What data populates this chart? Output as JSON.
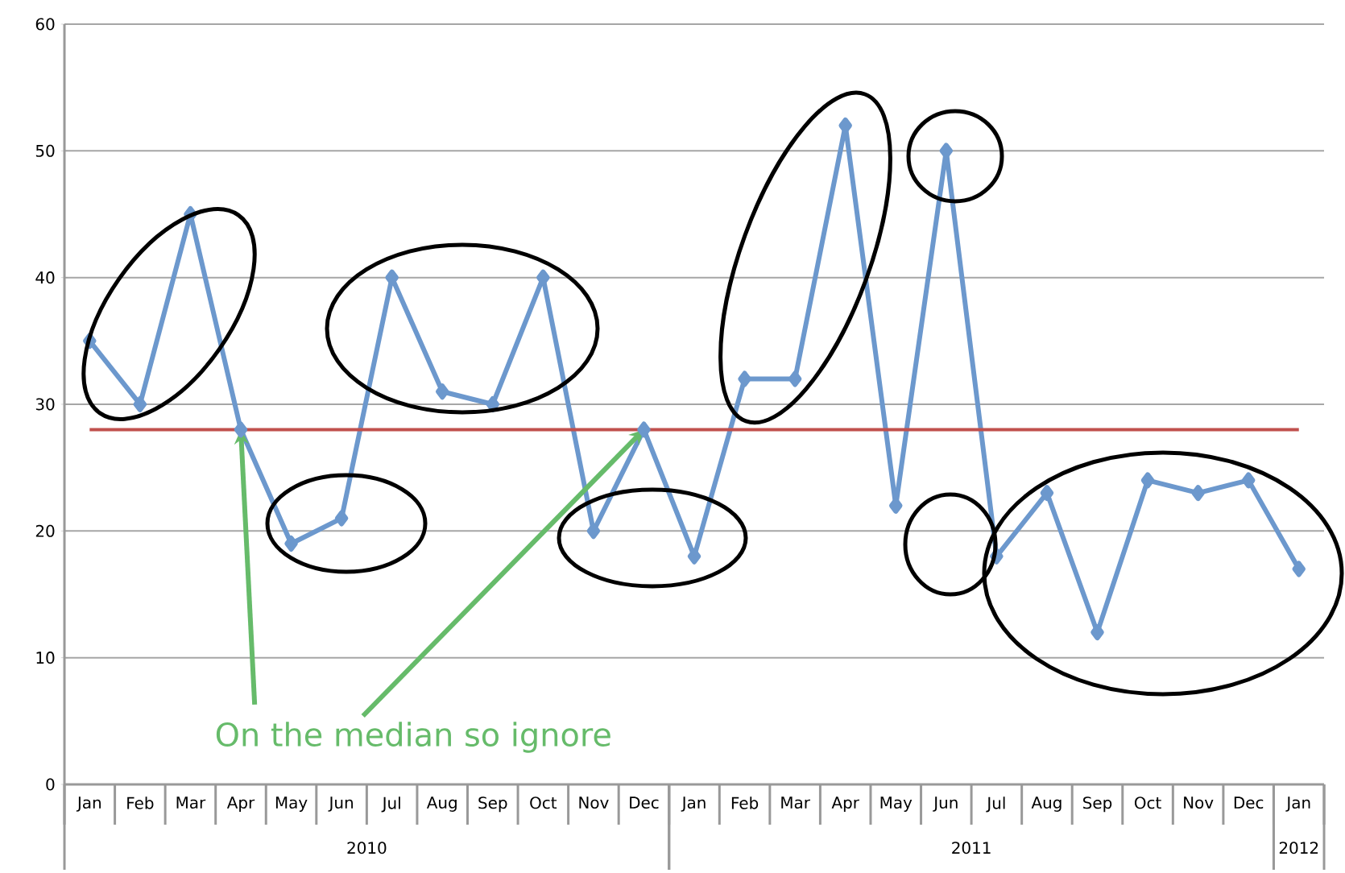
{
  "chart_data": {
    "type": "line",
    "categories": [
      "Jan",
      "Feb",
      "Mar",
      "Apr",
      "May",
      "Jun",
      "Jul",
      "Aug",
      "Sep",
      "Oct",
      "Nov",
      "Dec",
      "Jan",
      "Feb",
      "Mar",
      "Apr",
      "May",
      "Jun",
      "Jul",
      "Aug",
      "Sep",
      "Oct",
      "Nov",
      "Dec",
      "Jan"
    ],
    "series": [
      {
        "color": "#6c98cd",
        "values": [
          35,
          30,
          45,
          28,
          19,
          21,
          40,
          31,
          30,
          40,
          20,
          28,
          18,
          32,
          32,
          52,
          22,
          50,
          18,
          23,
          12,
          24,
          23,
          24,
          17
        ]
      }
    ],
    "ylim": [
      0,
      60
    ],
    "yticks": [
      0,
      10,
      20,
      30,
      40,
      50,
      60
    ],
    "grid": "y",
    "marker": "diamond",
    "line_style": "solid",
    "ref_lines": [
      {
        "axis": "y",
        "value": 28,
        "color": "#c0504d"
      }
    ],
    "annotations": [
      {
        "text": "On the median so ignore",
        "x": "Dec",
        "y": 28
      },
      "2010",
      "2011",
      "2012"
    ]
  }
}
